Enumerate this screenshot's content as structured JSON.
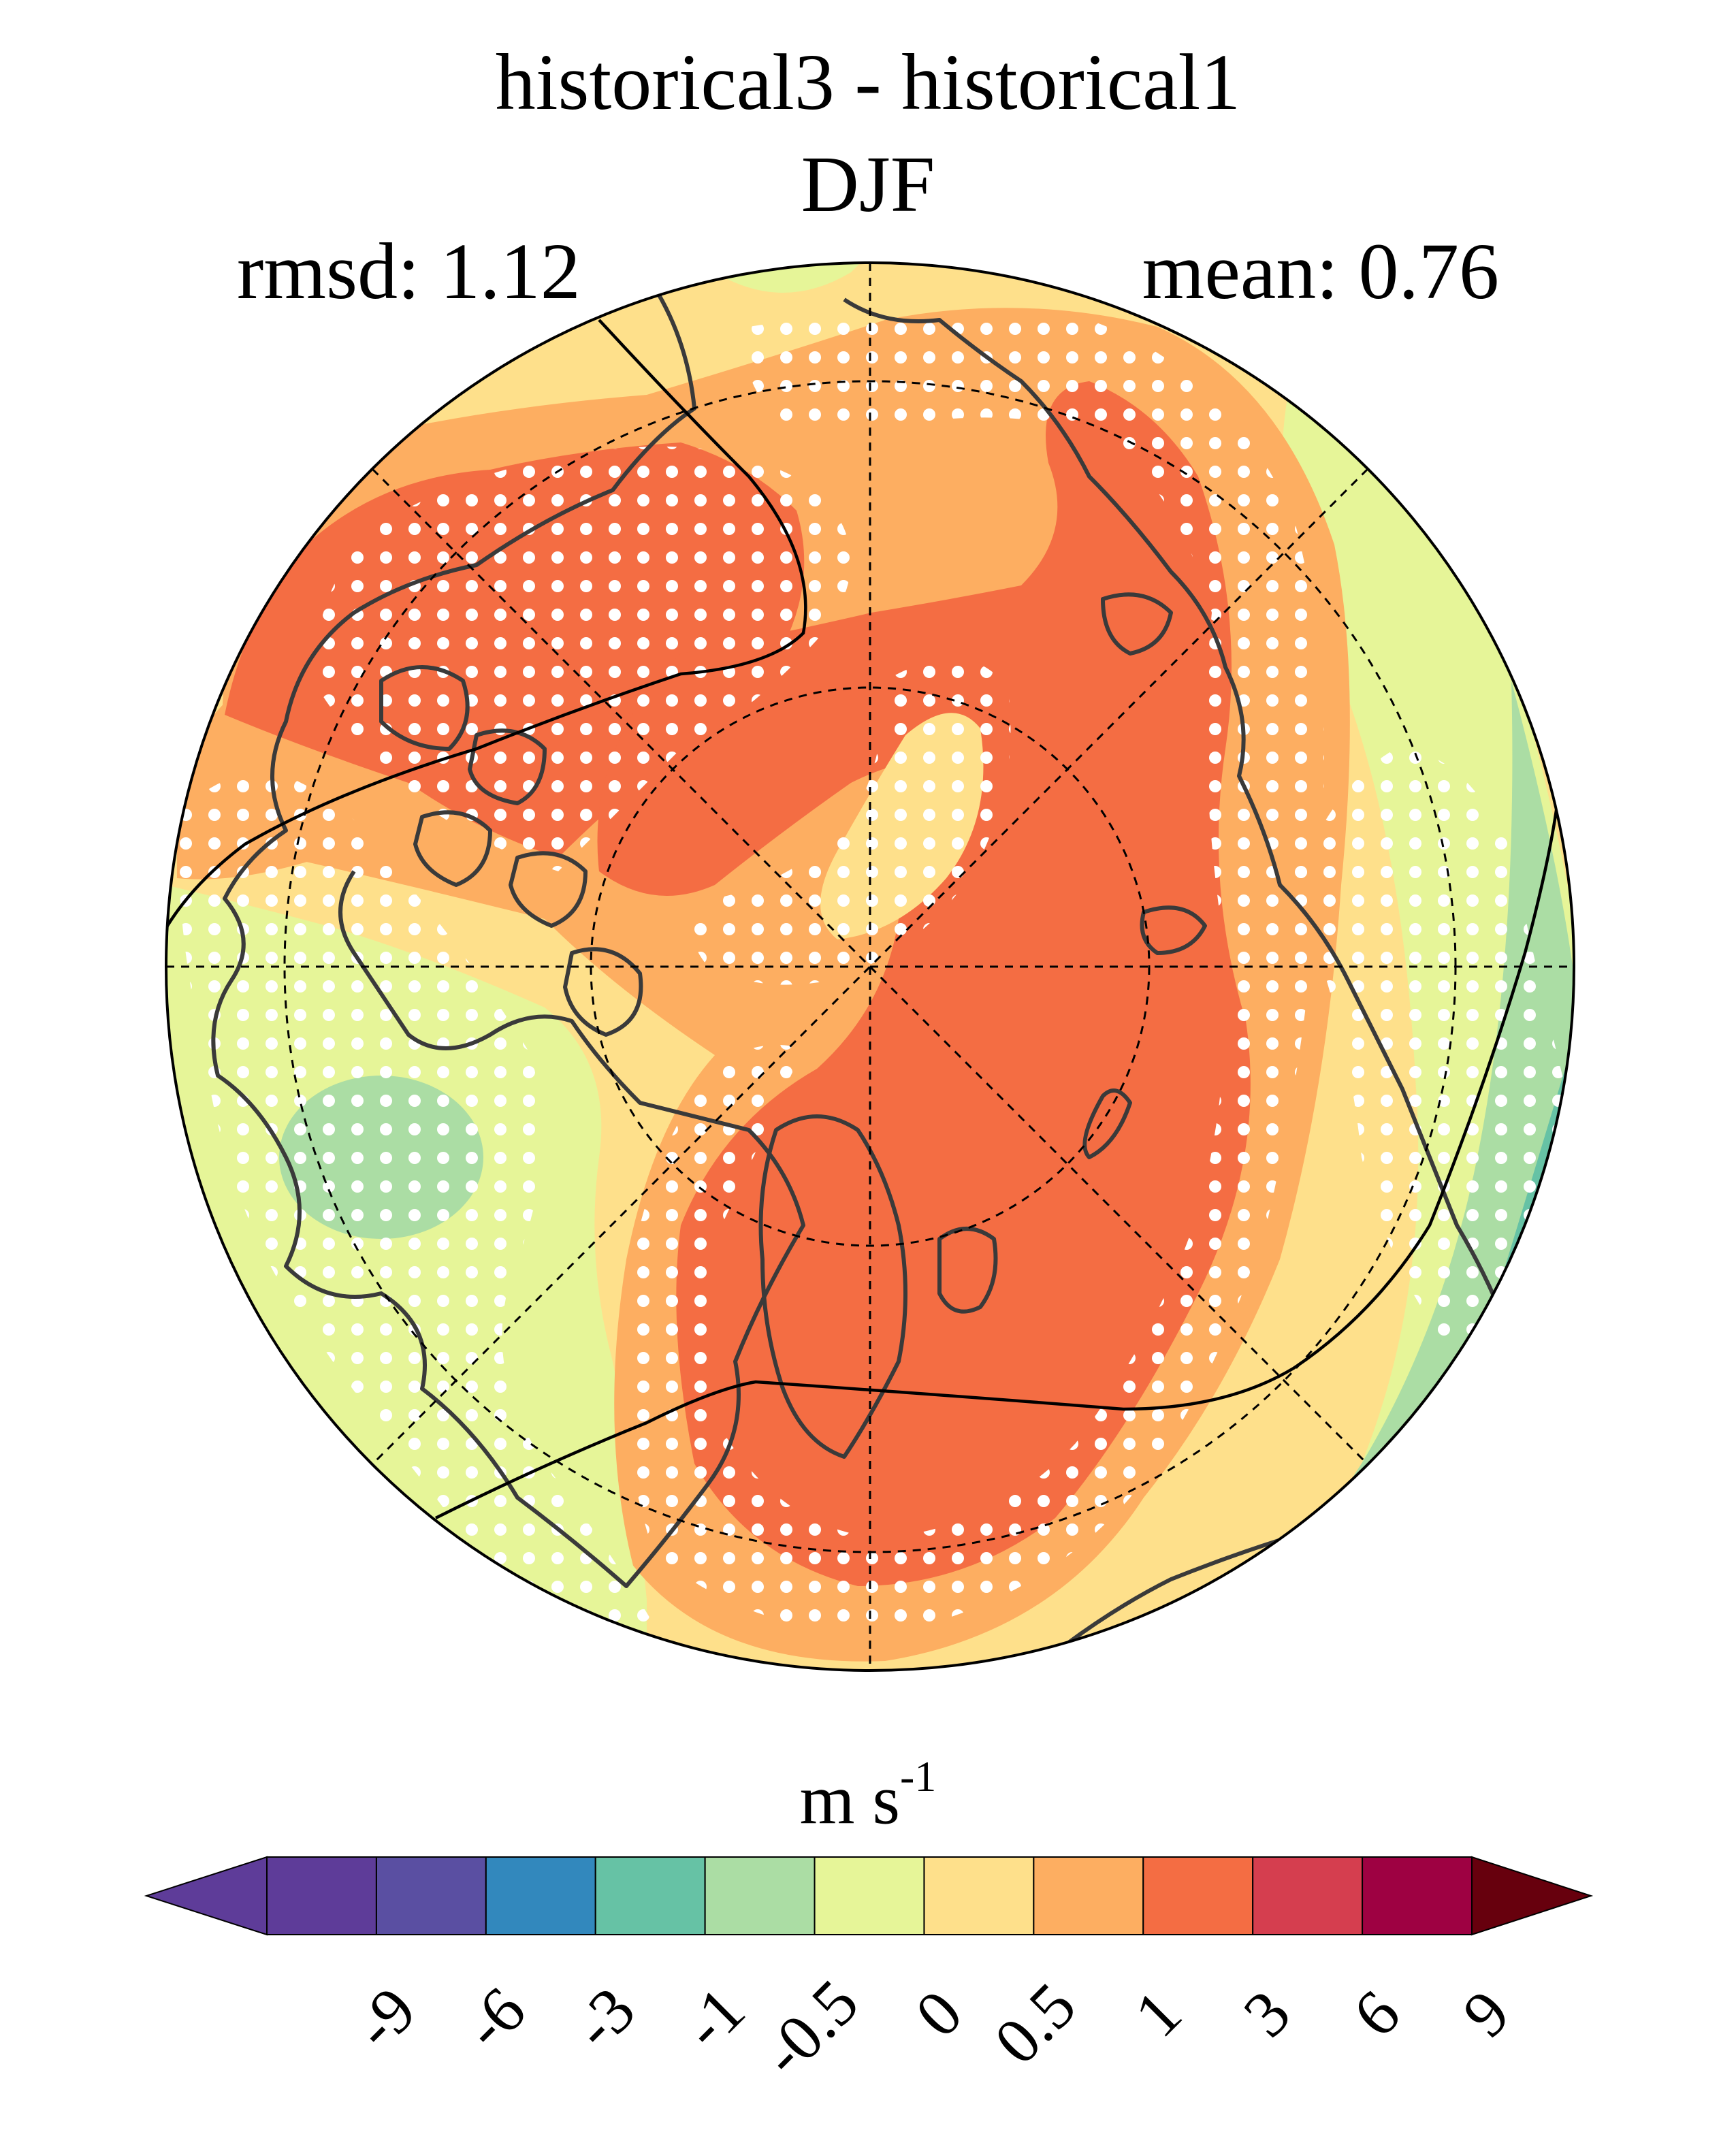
{
  "title": "historical3 - historical1",
  "season": "DJF",
  "rmsd_text": "rmsd: 1.12",
  "mean_text": "mean: 0.76",
  "colorbar": {
    "units": "m s",
    "units_exponent": "-1",
    "ticks": [
      "-9",
      "-6",
      "-3",
      "-1",
      "-0.5",
      "0",
      "0.5",
      "1",
      "3",
      "6",
      "9"
    ],
    "bins": [
      "#5e3c99",
      "#5a4fa2",
      "#3288bd",
      "#66c2a5",
      "#abdda4",
      "#e6f598",
      "#fee08b",
      "#fdae61",
      "#f46d43",
      "#d53e4f",
      "#9e0142"
    ],
    "low_extend_color": "#5e3c99",
    "high_extend_color": "#67000d"
  },
  "map": {
    "projection": "north-polar-stereographic",
    "colors": {
      "positive_strong": "#f46d43",
      "positive_mid": "#fdae61",
      "positive_weak": "#fee08b",
      "near_zero": "#e6f598",
      "negative_weak": "#abdda4",
      "negative_mid": "#66c2a5",
      "coastline": "#3a3a3a",
      "stipple": "#ffffff"
    }
  }
}
